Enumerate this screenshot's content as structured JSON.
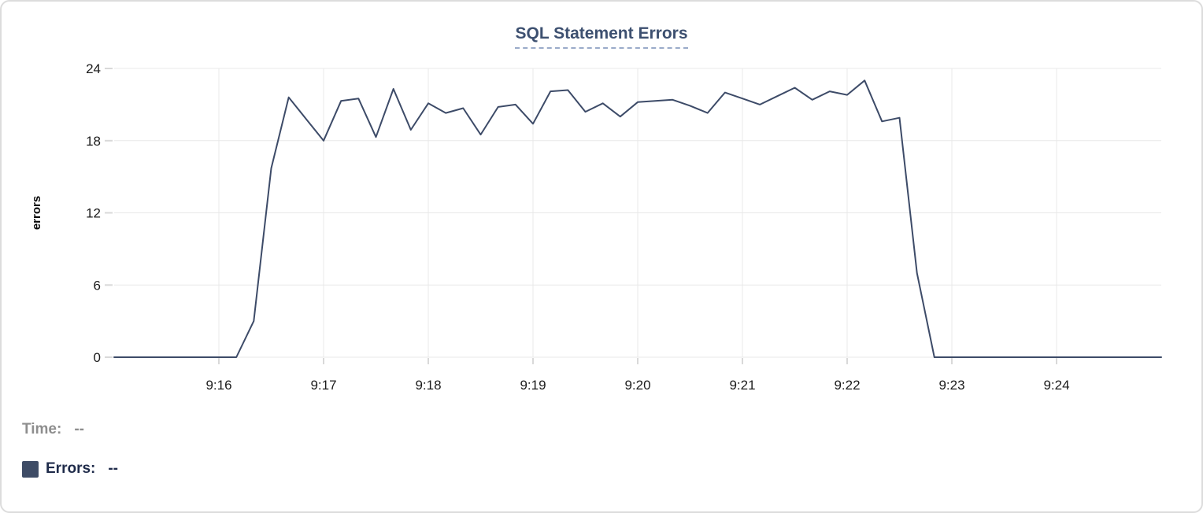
{
  "chart_data": {
    "type": "line",
    "title": "SQL Statement Errors",
    "xlabel": "",
    "ylabel": "errors",
    "ylim": [
      0,
      24
    ],
    "yticks": [
      0,
      6,
      12,
      18,
      24
    ],
    "xticks": [
      "9:16",
      "9:17",
      "9:18",
      "9:19",
      "9:20",
      "9:21",
      "9:22",
      "9:23",
      "9:24"
    ],
    "x_domain": [
      "9:15:00",
      "9:25:00"
    ],
    "grid": true,
    "legend_position": "bottom-left",
    "series": [
      {
        "name": "Errors",
        "color": "#3d4b68",
        "start": "9:15:00",
        "interval_seconds": 10,
        "values": [
          0,
          0,
          0,
          0,
          0,
          0,
          0,
          0,
          3,
          15.7,
          21.6,
          19.8,
          18,
          21.3,
          21.5,
          18.3,
          22.3,
          18.9,
          21.1,
          20.3,
          20.7,
          18.5,
          20.8,
          21,
          19.4,
          22.1,
          22.2,
          20.4,
          21.1,
          20,
          21.2,
          21.3,
          21.4,
          20.9,
          20.3,
          22,
          21.5,
          21,
          21.7,
          22.4,
          21.4,
          22.1,
          21.8,
          23,
          19.6,
          19.9,
          7,
          0,
          0,
          0,
          0,
          0,
          0,
          0,
          0,
          0,
          0,
          0,
          0,
          0,
          0
        ]
      }
    ]
  },
  "tooltip_readout": {
    "time_label": "Time:",
    "time_value": "--",
    "errors_label": "Errors:",
    "errors_value": "--",
    "swatch_color": "#3e4c66"
  },
  "colors": {
    "line": "#3d4b68",
    "grid": "#e8e8e8",
    "tick_stub": "#d9d9d9",
    "tick_label": "#1c1c1c",
    "axis_title": "#0a0a0a",
    "title_text": "#3d5070",
    "title_underline": "#9aabc9",
    "legend_muted": "#8e8e8e",
    "legend_dark": "#1f2b4a",
    "card_border": "#dcdcdc"
  }
}
